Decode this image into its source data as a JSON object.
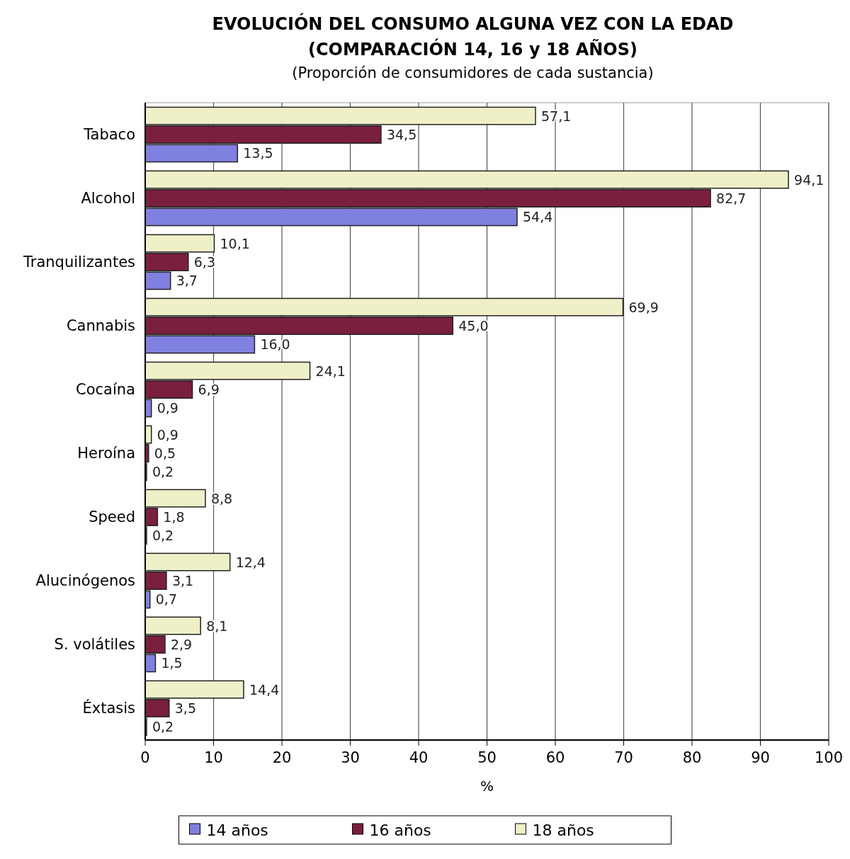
{
  "chart_data": {
    "type": "bar",
    "orientation": "horizontal",
    "title": "EVOLUCIÓN DEL CONSUMO ALGUNA VEZ CON LA EDAD\n(COMPARACIÓN 14, 16 y 18 AÑOS)",
    "subtitle": "(Proporción de consumidores de cada sustancia)",
    "xlabel": "%",
    "categories": [
      "Tabaco",
      "Alcohol",
      "Tranquilizantes",
      "Cannabis",
      "Cocaína",
      "Heroína",
      "Speed",
      "Alucinógenos",
      "S. volátiles",
      "Éxtasis"
    ],
    "series": [
      {
        "name": "14 años",
        "color": "#8080e0",
        "values": [
          13.5,
          54.4,
          3.7,
          16.0,
          0.9,
          0.2,
          0.2,
          0.7,
          1.5,
          0.2
        ],
        "value_labels": [
          "13,5",
          "54,4",
          "3,7",
          "16,0",
          "0,9",
          "0,2",
          "0,2",
          "0,7",
          "1,5",
          "0,2"
        ]
      },
      {
        "name": "16 años",
        "color": "#7a1f3d",
        "values": [
          34.5,
          82.7,
          6.3,
          45.0,
          6.9,
          0.5,
          1.8,
          3.1,
          2.9,
          3.5
        ],
        "value_labels": [
          "34,5",
          "82,7",
          "6,3",
          "45,0",
          "6,9",
          "0,5",
          "1,8",
          "3,1",
          "2,9",
          "3,5"
        ]
      },
      {
        "name": "18 años",
        "color": "#f0f0c8",
        "values": [
          57.1,
          94.1,
          10.1,
          69.9,
          24.1,
          0.9,
          8.8,
          12.4,
          8.1,
          14.4
        ],
        "value_labels": [
          "57,1",
          "94,1",
          "10,1",
          "69,9",
          "24,1",
          "0,9",
          "8,8",
          "12,4",
          "8,1",
          "14,4"
        ]
      }
    ],
    "xlim": [
      0,
      100
    ],
    "xticks": [
      0,
      10,
      20,
      30,
      40,
      50,
      60,
      70,
      80,
      90,
      100
    ],
    "grid": "x",
    "legend": "bottom"
  }
}
